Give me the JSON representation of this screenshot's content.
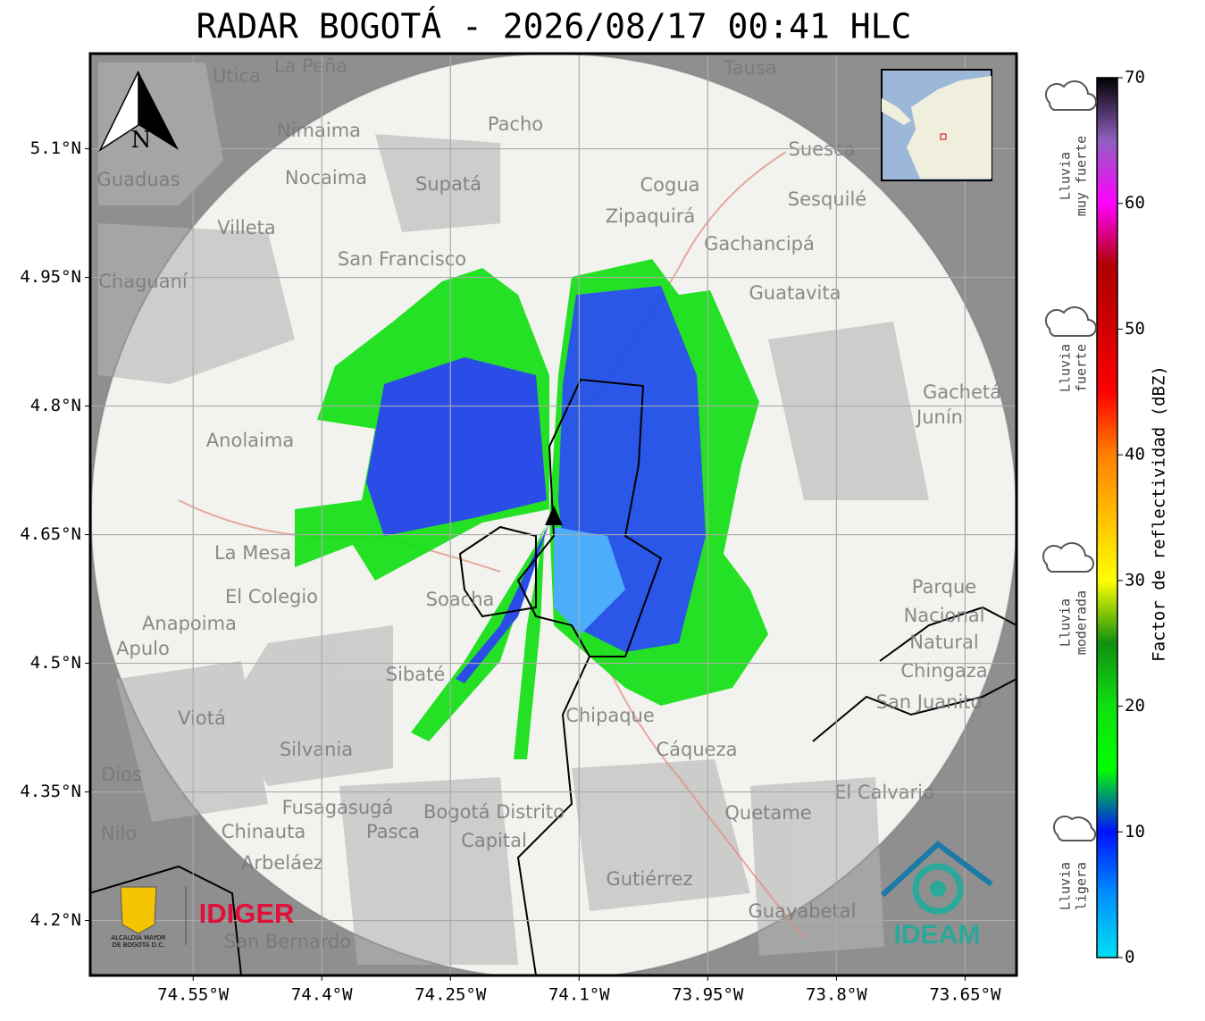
{
  "title": "RADAR BOGOTÁ - 2026/08/17 00:41 HLC",
  "map": {
    "xlim": [
      -74.67,
      -73.59
    ],
    "ylim": [
      4.136,
      5.211
    ],
    "xticks": [
      {
        "value": -74.55,
        "label": "74.55°W"
      },
      {
        "value": -74.4,
        "label": "74.4°W"
      },
      {
        "value": -74.25,
        "label": "74.25°W"
      },
      {
        "value": -74.1,
        "label": "74.1°W"
      },
      {
        "value": -73.95,
        "label": "73.95°W"
      },
      {
        "value": -73.8,
        "label": "73.8°W"
      },
      {
        "value": -73.65,
        "label": "73.65°W"
      }
    ],
    "yticks": [
      {
        "value": 4.2,
        "label": "4.2°N"
      },
      {
        "value": 4.35,
        "label": "4.35°N"
      },
      {
        "value": 4.5,
        "label": "4.5°N"
      },
      {
        "value": 4.65,
        "label": "4.65°N"
      },
      {
        "value": 4.8,
        "label": "4.8°N"
      },
      {
        "value": 4.95,
        "label": "4.95°N"
      },
      {
        "value": 5.1,
        "label": "5.1°N"
      }
    ],
    "grid": true,
    "north": "N",
    "places": [
      "La Peña",
      "Utica",
      "Tausa",
      "Pacho",
      "Nimaima",
      "Suesca",
      "Guaduas",
      "Nocaima",
      "Supatá",
      "Cogua",
      "Sesquilé",
      "Zipaquirá",
      "Villeta",
      "Gachancipá",
      "San Francisco",
      "Chaguaní",
      "Guatavita",
      "Anolaima",
      "La Mesa",
      "El Colegio",
      "Soacha",
      "Anapoima",
      "Apulo",
      "Sibaté",
      "Chipaque",
      "Cáqueza",
      "Silvania",
      "Viotá",
      "Dios",
      "El Calvario",
      "Fusagasugá",
      "Bogotá Distrito",
      "Capital",
      "Pasca",
      "Chinauta",
      "Nilo",
      "Quetame",
      "Arbeláez",
      "Gutiérrez",
      "Guayabetal",
      "San Bernardo",
      "Parque",
      "Nacional",
      "Natural",
      "Chingaza",
      "San Juanito",
      "Gachetá",
      "Junín"
    ]
  },
  "logos": {
    "idiger": "IDIGER",
    "ideam": "IDEAM",
    "alcaldia": [
      "ALCALDÍA MAYOR",
      "DE BOGOTÁ D.C."
    ]
  },
  "colorbar": {
    "label": "Factor de reflectividad (dBZ)",
    "clim": [
      0,
      70
    ],
    "ticks": [
      0,
      10,
      20,
      30,
      40,
      50,
      60,
      70
    ],
    "colormap": [
      "#00e0f0",
      "#0090ff",
      "#0010ff",
      "#00ff00",
      "#10e010",
      "#109010",
      "#ffff00",
      "#ffc000",
      "#ff8000",
      "#ff0000",
      "#d00000",
      "#b00000",
      "#ff00ff",
      "#9060c0",
      "#000000"
    ],
    "intensity": [
      [
        "Lluvia",
        "muy fuerte"
      ],
      [
        "Lluvia",
        "fuerte"
      ],
      [
        "Lluvia",
        "moderada"
      ],
      [
        "Lluvia",
        "ligera"
      ]
    ]
  }
}
